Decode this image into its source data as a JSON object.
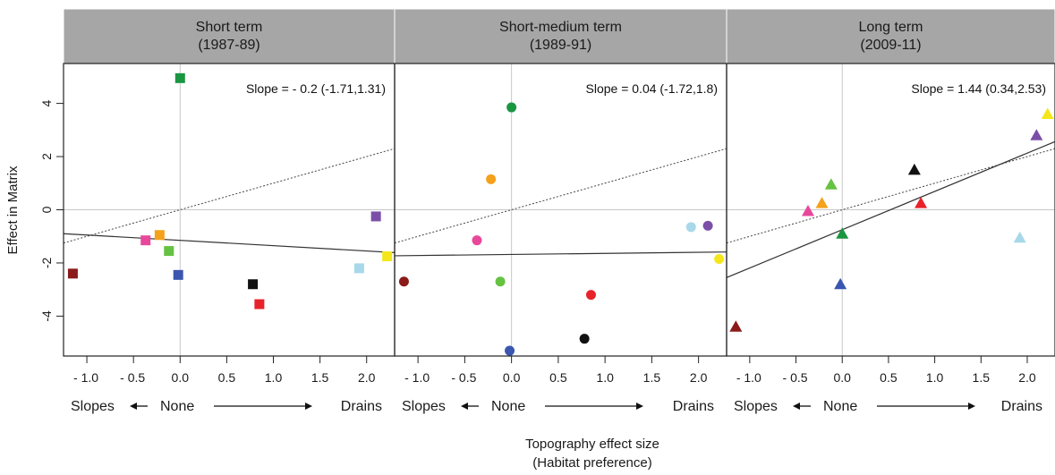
{
  "chart_data": {
    "type": "scatter",
    "ylabel": "Effect in Matrix",
    "xlabel_line1": "Topography effect size",
    "xlabel_line2": "(Habitat preference)",
    "direction_labels": {
      "left": "Slopes",
      "middle": "None",
      "right": "Drains"
    },
    "xlim": [
      -1.25,
      2.3
    ],
    "ylim": [
      -5.5,
      5.5
    ],
    "x_ticks": [
      -1.0,
      -0.5,
      0.0,
      0.5,
      1.0,
      1.5,
      2.0
    ],
    "x_tick_labels": [
      "- 1.0",
      "- 0.5",
      "0.0",
      "0.5",
      "1.0",
      "1.5",
      "2.0"
    ],
    "y_ticks": [
      -4,
      -2,
      0,
      2,
      4
    ],
    "y_tick_labels": [
      "-4",
      "-2",
      "0",
      "2",
      "4"
    ],
    "panels": [
      {
        "title_line1": "Short term",
        "title_line2": "(1987-89)",
        "marker": "square",
        "slope_label": "Slope = - 0.2 (-1.71,1.31)",
        "fit": {
          "slope": -0.2,
          "intercept": -1.15
        },
        "identity_line": {
          "slope": 1,
          "intercept": 0
        },
        "points": [
          {
            "x": -1.15,
            "y": -2.4,
            "color": "#8b1a1a"
          },
          {
            "x": -0.37,
            "y": -1.15,
            "color": "#e8489b"
          },
          {
            "x": -0.22,
            "y": -0.95,
            "color": "#f5a11c"
          },
          {
            "x": -0.12,
            "y": -1.55,
            "color": "#66c242"
          },
          {
            "x": -0.02,
            "y": -2.45,
            "color": "#3a56b0"
          },
          {
            "x": 0.0,
            "y": 4.95,
            "color": "#1a9641"
          },
          {
            "x": 0.78,
            "y": -2.8,
            "color": "#111111"
          },
          {
            "x": 0.85,
            "y": -3.55,
            "color": "#e8222a"
          },
          {
            "x": 1.92,
            "y": -2.2,
            "color": "#a8d8ea"
          },
          {
            "x": 2.1,
            "y": -0.25,
            "color": "#7b4fa8"
          },
          {
            "x": 2.22,
            "y": -1.75,
            "color": "#f5e61c"
          }
        ]
      },
      {
        "title_line1": "Short-medium term",
        "title_line2": "(1989-91)",
        "marker": "circle",
        "slope_label": "Slope = 0.04 (-1.72,1.8)",
        "fit": {
          "slope": 0.04,
          "intercept": -1.68
        },
        "identity_line": {
          "slope": 1,
          "intercept": 0
        },
        "points": [
          {
            "x": -1.15,
            "y": -2.7,
            "color": "#8b1a1a"
          },
          {
            "x": -0.37,
            "y": -1.15,
            "color": "#e8489b"
          },
          {
            "x": -0.22,
            "y": 1.15,
            "color": "#f5a11c"
          },
          {
            "x": -0.12,
            "y": -2.7,
            "color": "#66c242"
          },
          {
            "x": -0.02,
            "y": -5.3,
            "color": "#3a56b0"
          },
          {
            "x": 0.0,
            "y": 3.85,
            "color": "#1a9641"
          },
          {
            "x": 0.78,
            "y": -4.85,
            "color": "#111111"
          },
          {
            "x": 0.85,
            "y": -3.2,
            "color": "#e8222a"
          },
          {
            "x": 1.92,
            "y": -0.65,
            "color": "#a8d8ea"
          },
          {
            "x": 2.1,
            "y": -0.6,
            "color": "#7b4fa8"
          },
          {
            "x": 2.22,
            "y": -1.85,
            "color": "#f5e61c"
          }
        ]
      },
      {
        "title_line1": "Long term",
        "title_line2": "(2009-11)",
        "marker": "triangle",
        "slope_label": "Slope = 1.44 (0.34,2.53)",
        "fit": {
          "slope": 1.44,
          "intercept": -0.75
        },
        "identity_line": {
          "slope": 1,
          "intercept": 0
        },
        "points": [
          {
            "x": -1.15,
            "y": -4.4,
            "color": "#8b1a1a"
          },
          {
            "x": -0.37,
            "y": -0.05,
            "color": "#e8489b"
          },
          {
            "x": -0.22,
            "y": 0.25,
            "color": "#f5a11c"
          },
          {
            "x": -0.12,
            "y": 0.95,
            "color": "#66c242"
          },
          {
            "x": -0.02,
            "y": -2.8,
            "color": "#3a56b0"
          },
          {
            "x": 0.0,
            "y": -0.9,
            "color": "#1a9641"
          },
          {
            "x": 0.78,
            "y": 1.5,
            "color": "#111111"
          },
          {
            "x": 0.85,
            "y": 0.25,
            "color": "#e8222a"
          },
          {
            "x": 1.92,
            "y": -1.05,
            "color": "#a8d8ea"
          },
          {
            "x": 2.1,
            "y": 2.8,
            "color": "#7b4fa8"
          },
          {
            "x": 2.22,
            "y": 3.6,
            "color": "#f5e61c"
          }
        ]
      }
    ]
  }
}
